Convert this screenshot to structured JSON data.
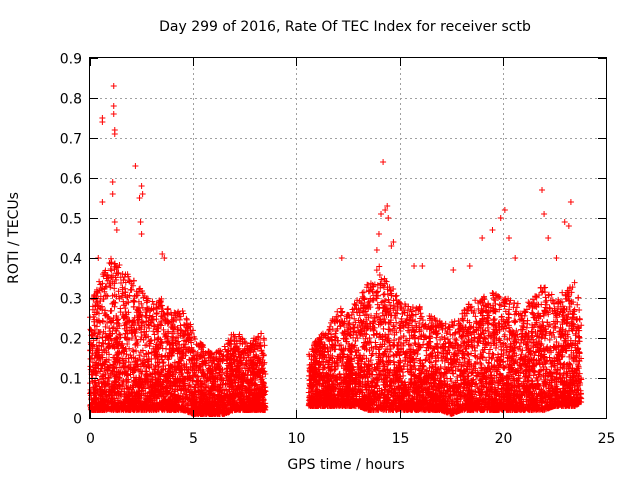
{
  "chart_data": {
    "type": "scatter",
    "title": "Day 299 of 2016, Rate Of TEC Index for receiver sctb",
    "xlabel": "GPS time / hours",
    "ylabel": "ROTI / TECUs",
    "xlim": [
      0,
      25
    ],
    "ylim": [
      0,
      0.9
    ],
    "xticks": [
      0,
      5,
      10,
      15,
      20,
      25
    ],
    "xtick_labels": [
      "0",
      "5",
      "10",
      "15",
      "20",
      "25"
    ],
    "yticks": [
      0,
      0.1,
      0.2,
      0.3,
      0.4,
      0.5,
      0.6,
      0.7,
      0.8,
      0.9
    ],
    "ytick_labels": [
      "0",
      "0.1",
      "0.2",
      "0.3",
      "0.4",
      "0.5",
      "0.6",
      "0.7",
      "0.8",
      "0.9"
    ],
    "grid": true,
    "marker": "+",
    "series_color": "#ff0000",
    "data_gap_hours": [
      8.5,
      10.6
    ],
    "segments": [
      {
        "x_range": [
          0,
          8.5
        ]
      },
      {
        "x_range": [
          10.6,
          23.8
        ]
      }
    ],
    "envelope": {
      "x": [
        0.0,
        0.5,
        1.0,
        1.5,
        2.0,
        2.5,
        3.0,
        3.5,
        4.0,
        4.5,
        5.0,
        5.5,
        6.0,
        6.5,
        7.0,
        7.5,
        8.0,
        8.5,
        10.6,
        11.0,
        11.5,
        12.0,
        12.5,
        13.0,
        13.5,
        14.0,
        14.5,
        15.0,
        15.5,
        16.0,
        16.5,
        17.0,
        17.5,
        18.0,
        18.5,
        19.0,
        19.5,
        20.0,
        20.5,
        21.0,
        21.5,
        22.0,
        22.5,
        23.0,
        23.5,
        23.8
      ],
      "low": [
        0.02,
        0.02,
        0.02,
        0.02,
        0.02,
        0.02,
        0.02,
        0.02,
        0.02,
        0.02,
        0.01,
        0.01,
        0.01,
        0.01,
        0.02,
        0.02,
        0.02,
        0.02,
        0.03,
        0.03,
        0.03,
        0.03,
        0.03,
        0.03,
        0.02,
        0.02,
        0.02,
        0.02,
        0.02,
        0.02,
        0.02,
        0.02,
        0.01,
        0.02,
        0.02,
        0.02,
        0.02,
        0.02,
        0.02,
        0.02,
        0.02,
        0.02,
        0.03,
        0.03,
        0.03,
        0.04
      ],
      "high": [
        0.28,
        0.35,
        0.4,
        0.38,
        0.35,
        0.33,
        0.3,
        0.3,
        0.26,
        0.28,
        0.22,
        0.18,
        0.16,
        0.18,
        0.22,
        0.2,
        0.2,
        0.22,
        0.16,
        0.2,
        0.22,
        0.28,
        0.26,
        0.3,
        0.34,
        0.38,
        0.34,
        0.3,
        0.28,
        0.28,
        0.26,
        0.24,
        0.24,
        0.26,
        0.3,
        0.3,
        0.32,
        0.3,
        0.3,
        0.28,
        0.3,
        0.34,
        0.3,
        0.32,
        0.34,
        0.28
      ]
    },
    "outliers": [
      {
        "x": 0.6,
        "y": 0.75
      },
      {
        "x": 0.6,
        "y": 0.74
      },
      {
        "x": 0.6,
        "y": 0.54
      },
      {
        "x": 1.15,
        "y": 0.83
      },
      {
        "x": 1.15,
        "y": 0.78
      },
      {
        "x": 1.15,
        "y": 0.76
      },
      {
        "x": 1.2,
        "y": 0.72
      },
      {
        "x": 1.2,
        "y": 0.71
      },
      {
        "x": 1.1,
        "y": 0.59
      },
      {
        "x": 1.1,
        "y": 0.56
      },
      {
        "x": 1.2,
        "y": 0.49
      },
      {
        "x": 1.3,
        "y": 0.47
      },
      {
        "x": 2.2,
        "y": 0.63
      },
      {
        "x": 2.5,
        "y": 0.58
      },
      {
        "x": 2.55,
        "y": 0.56
      },
      {
        "x": 2.4,
        "y": 0.55
      },
      {
        "x": 2.45,
        "y": 0.49
      },
      {
        "x": 2.5,
        "y": 0.46
      },
      {
        "x": 3.5,
        "y": 0.41
      },
      {
        "x": 3.6,
        "y": 0.4
      },
      {
        "x": 0.4,
        "y": 0.4
      },
      {
        "x": 14.2,
        "y": 0.64
      },
      {
        "x": 14.4,
        "y": 0.53
      },
      {
        "x": 14.3,
        "y": 0.52
      },
      {
        "x": 14.1,
        "y": 0.51
      },
      {
        "x": 14.45,
        "y": 0.5
      },
      {
        "x": 14.7,
        "y": 0.44
      },
      {
        "x": 14.6,
        "y": 0.43
      },
      {
        "x": 14.0,
        "y": 0.46
      },
      {
        "x": 13.9,
        "y": 0.42
      },
      {
        "x": 12.2,
        "y": 0.4
      },
      {
        "x": 15.7,
        "y": 0.38
      },
      {
        "x": 16.1,
        "y": 0.38
      },
      {
        "x": 19.0,
        "y": 0.45
      },
      {
        "x": 19.5,
        "y": 0.47
      },
      {
        "x": 19.9,
        "y": 0.5
      },
      {
        "x": 20.1,
        "y": 0.52
      },
      {
        "x": 20.3,
        "y": 0.45
      },
      {
        "x": 21.9,
        "y": 0.57
      },
      {
        "x": 22.0,
        "y": 0.51
      },
      {
        "x": 22.2,
        "y": 0.45
      },
      {
        "x": 23.3,
        "y": 0.54
      },
      {
        "x": 23.0,
        "y": 0.49
      },
      {
        "x": 23.2,
        "y": 0.48
      },
      {
        "x": 22.6,
        "y": 0.4
      },
      {
        "x": 20.6,
        "y": 0.4
      },
      {
        "x": 17.6,
        "y": 0.37
      },
      {
        "x": 18.4,
        "y": 0.38
      }
    ]
  }
}
